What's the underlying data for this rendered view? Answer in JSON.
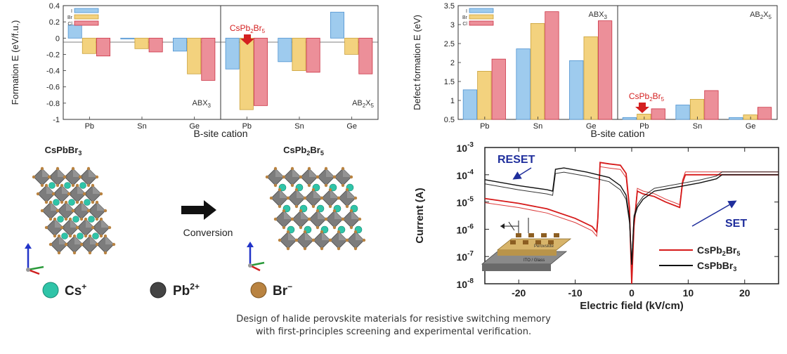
{
  "colors": {
    "I": "#9ecbee",
    "Br": "#f3d27e",
    "Cl": "#ec8f99",
    "Cs": "#2fc4a8",
    "Pb": "#555555",
    "Br_atom": "#b98341",
    "CsPb2Br5_curve": "#d61a1a",
    "CsPbBr3_curve": "#111111",
    "arrow_red": "#d42020",
    "arrow_blue": "#1f2e9c"
  },
  "chart_data": [
    {
      "type": "bar",
      "ylabel": "Formation E (eV/f.u.)",
      "xlabel": "B-site cation",
      "ylim": [
        -1,
        0.4
      ],
      "yticks": [
        "-1",
        "-0.8",
        "-0.6",
        "-0.4",
        "-0.2",
        "0",
        "0.2",
        "0.4"
      ],
      "legend": [
        "I",
        "Br",
        "Cl"
      ],
      "legend_position": "top-left",
      "groups": [
        {
          "label": "ABX",
          "sub": "3",
          "categories": [
            "Pb",
            "Sn",
            "Ge"
          ],
          "series": [
            {
              "name": "I",
              "values": [
                0.16,
                -0.01,
                -0.16
              ]
            },
            {
              "name": "Br",
              "values": [
                -0.19,
                -0.13,
                -0.44
              ]
            },
            {
              "name": "Cl",
              "values": [
                -0.22,
                -0.17,
                -0.52
              ]
            }
          ]
        },
        {
          "label": "AB",
          "sub": "2",
          "label2": "X",
          "sub2": "5",
          "categories": [
            "Pb",
            "Sn",
            "Ge"
          ],
          "series": [
            {
              "name": "I",
              "values": [
                -0.38,
                -0.29,
                0.32
              ]
            },
            {
              "name": "Br",
              "values": [
                -0.88,
                -0.4,
                -0.2
              ]
            },
            {
              "name": "Cl",
              "values": [
                -0.83,
                -0.42,
                -0.44
              ]
            }
          ]
        }
      ],
      "annotation": {
        "text": "CsPb",
        "sub": "2",
        "text2": "Br",
        "sub2": "5"
      }
    },
    {
      "type": "bar",
      "ylabel": "Defect formation E (eV)",
      "xlabel": "B-site cation",
      "ylim": [
        0.5,
        3.5
      ],
      "yticks": [
        "0.5",
        "1",
        "1.5",
        "2",
        "2.5",
        "3",
        "3.5"
      ],
      "legend": [
        "I",
        "Br",
        "Cl"
      ],
      "legend_position": "top-left",
      "groups": [
        {
          "label": "ABX",
          "sub": "3",
          "categories": [
            "Pb",
            "Sn",
            "Ge"
          ],
          "series": [
            {
              "name": "I",
              "values": [
                1.28,
                2.36,
                2.05
              ]
            },
            {
              "name": "Br",
              "values": [
                1.77,
                3.03,
                2.68
              ]
            },
            {
              "name": "Cl",
              "values": [
                2.09,
                3.34,
                3.1
              ]
            }
          ]
        },
        {
          "label": "AB",
          "sub": "2",
          "label2": "X",
          "sub2": "5",
          "categories": [
            "Pb",
            "Sn",
            "Ge"
          ],
          "series": [
            {
              "name": "I",
              "values": [
                0.55,
                0.88,
                0.55
              ]
            },
            {
              "name": "Br",
              "values": [
                0.64,
                1.03,
                0.62
              ]
            },
            {
              "name": "Cl",
              "values": [
                0.78,
                1.26,
                0.82
              ]
            }
          ]
        }
      ],
      "annotation": {
        "text": "CsPb",
        "sub": "2",
        "text2": "Br",
        "sub2": "5"
      }
    },
    {
      "type": "line",
      "ylabel": "Current (A)",
      "xlabel": "Electric field (kV/cm)",
      "xlim": [
        -26,
        26
      ],
      "xticks": [
        "-20",
        "-10",
        "0",
        "10",
        "20"
      ],
      "ylog": [
        -8,
        -3
      ],
      "yticks_base": "10",
      "yticks_exp": [
        "-8",
        "-7",
        "-6",
        "-5",
        "-4",
        "-3"
      ],
      "annotations": {
        "reset": "RESET",
        "set": "SET"
      },
      "inset_labels": [
        "Perovskite",
        "ITO / Glass"
      ],
      "series": [
        {
          "name": "CsPb",
          "name_sub": "2",
          "name2": "Br",
          "name_sub2": "5",
          "color": "#d61a1a",
          "x": [
            -26,
            -20,
            -15,
            -10,
            -7,
            -6.2,
            -6,
            -5.6,
            -4,
            -2,
            -1,
            -0.4,
            0,
            0.4,
            1,
            2,
            4,
            6,
            8.5,
            9,
            9.5,
            12,
            16,
            20,
            26
          ],
          "log_y": [
            -4.87,
            -5.05,
            -5.25,
            -5.6,
            -5.9,
            -6.1,
            -5.6,
            -3.55,
            -3.6,
            -3.65,
            -3.95,
            -5.2,
            -8,
            -5.9,
            -4.6,
            -4.7,
            -4.8,
            -5.0,
            -5.2,
            -4.3,
            -4.0,
            -4.0,
            -4.0,
            -4.0,
            -4.0
          ]
        },
        {
          "name": "CsPbBr",
          "name_sub": "3",
          "color": "#111111",
          "x": [
            -26,
            -20,
            -15,
            -14,
            -13.5,
            -12,
            -8,
            -4,
            -2,
            -1,
            -0.4,
            0,
            0.4,
            1,
            2,
            4,
            8,
            12,
            15,
            16,
            20,
            26
          ],
          "log_y": [
            -4.18,
            -4.4,
            -4.55,
            -4.6,
            -3.8,
            -3.75,
            -3.9,
            -4.1,
            -4.4,
            -4.75,
            -5.6,
            -7.3,
            -5.6,
            -5.2,
            -4.9,
            -4.6,
            -4.45,
            -4.3,
            -4.15,
            -4.0,
            -4.0,
            -4.0
          ]
        }
      ]
    }
  ],
  "crystals": {
    "left_title": "CsPbBr",
    "left_sub": "3",
    "right_title": "CsPb",
    "right_sub": "2",
    "right_title2": "Br",
    "right_sub2": "5",
    "conversion_label": "Conversion"
  },
  "atoms_legend": [
    {
      "label": "Cs",
      "sup": "+",
      "icon": "cs-atom-icon"
    },
    {
      "label": "Pb",
      "sup": "2+",
      "icon": "pb-atom-icon"
    },
    {
      "label": "Br",
      "sup": "−",
      "icon": "br-atom-icon"
    }
  ],
  "caption": {
    "line1": "Design of halide perovskite materials for resistive switching memory",
    "line2": "with first-principles screening and experimental verification."
  }
}
